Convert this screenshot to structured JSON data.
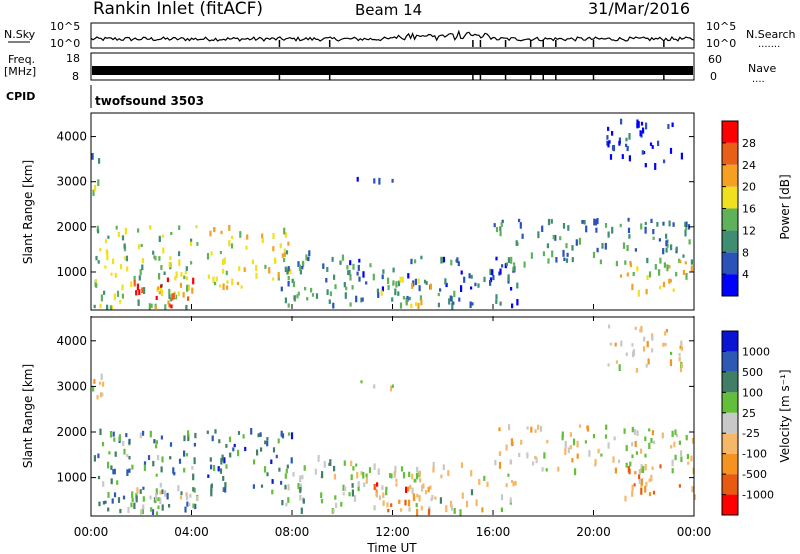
{
  "header": {
    "station": "Rankin Inlet (fitACF)",
    "beam": "Beam 14",
    "date": "31/Mar/2016"
  },
  "nsky_panel": {
    "left_label": "N.Sky",
    "right_label": "N.Search",
    "right_dots": ".......",
    "left_ticks": [
      "10^5",
      "10^0"
    ],
    "right_ticks": [
      "10^5",
      "10^0"
    ]
  },
  "freq_panel": {
    "left_label_top": "Freq.",
    "left_label_bottom": "[MHz]",
    "right_label": "Nave",
    "right_dots": "....",
    "left_ticks": [
      "18",
      "8"
    ],
    "right_ticks": [
      "60",
      "0"
    ]
  },
  "cpid_panel": {
    "label": "CPID",
    "value": "twofsound 3503"
  },
  "x_axis": {
    "title": "Time UT",
    "ticks": [
      "00:00",
      "04:00",
      "08:00",
      "12:00",
      "16:00",
      "20:00",
      "00:00"
    ]
  },
  "colors": {
    "power": [
      "#0000ff",
      "#2a52b8",
      "#3f8d72",
      "#5fb25a",
      "#f0e020",
      "#f5a020",
      "#e86018",
      "#ff0000"
    ],
    "velocity": [
      "#ff0000",
      "#e85a10",
      "#f49320",
      "#f5b868",
      "#c8c8c8",
      "#63be3c",
      "#407e66",
      "#2d59b4",
      "#0a14d2"
    ]
  },
  "chart_data": [
    {
      "type": "heatmap",
      "name": "power",
      "ylabel": "Slant Range [km]",
      "yticks": [
        1000,
        2000,
        3000,
        4000
      ],
      "ylim": [
        180,
        4500
      ],
      "xlim": [
        0,
        24
      ],
      "colorbar": {
        "label": "Power [dB]",
        "ticks": [
          "28",
          "24",
          "20",
          "16",
          "12",
          "8",
          "4"
        ],
        "range": [
          0,
          32
        ]
      },
      "regions": [
        {
          "t0": 0.1,
          "t1": 4.2,
          "r0": 250,
          "r1": 2100,
          "level": 0.45
        },
        {
          "t0": 1.5,
          "t1": 4.1,
          "r0": 250,
          "r1": 900,
          "level": 0.85
        },
        {
          "t0": 4.6,
          "t1": 8.0,
          "r0": 700,
          "r1": 2100,
          "level": 0.55
        },
        {
          "t0": 7.5,
          "t1": 10.5,
          "r0": 300,
          "r1": 1500,
          "level": 0.3
        },
        {
          "t0": 10.0,
          "t1": 17.0,
          "r0": 300,
          "r1": 1400,
          "level": 0.25
        },
        {
          "t0": 11.0,
          "t1": 13.5,
          "r0": 300,
          "r1": 900,
          "level": 0.55
        },
        {
          "t0": 16.0,
          "t1": 24.0,
          "r0": 1200,
          "r1": 2200,
          "level": 0.3
        },
        {
          "t0": 21.0,
          "t1": 24.0,
          "r0": 600,
          "r1": 1300,
          "level": 0.55
        },
        {
          "t0": 10.5,
          "t1": 12.0,
          "r0": 2950,
          "r1": 3150,
          "level": 0.1
        },
        {
          "t0": 20.5,
          "t1": 23.5,
          "r0": 3400,
          "r1": 4400,
          "level": 0.12
        },
        {
          "t0": 0.0,
          "t1": 0.5,
          "r0": 2800,
          "r1": 3800,
          "level": 0.35
        }
      ]
    },
    {
      "type": "heatmap",
      "name": "velocity",
      "ylabel": "Slant Range [km]",
      "yticks": [
        1000,
        2000,
        3000,
        4000
      ],
      "ylim": [
        180,
        4500
      ],
      "xlim": [
        0,
        24
      ],
      "colorbar": {
        "label": "Velocity [m s⁻¹]",
        "ticks": [
          "1000",
          "500",
          "100",
          "25",
          "-25",
          "-100",
          "-500",
          "-1000"
        ],
        "range": [
          -1200,
          1200
        ]
      },
      "regions": [
        {
          "t0": 0.1,
          "t1": 4.2,
          "r0": 250,
          "r1": 2100,
          "level": 0.7
        },
        {
          "t0": 1.5,
          "t1": 4.1,
          "r0": 250,
          "r1": 900,
          "level": 0.52
        },
        {
          "t0": 4.6,
          "t1": 8.0,
          "r0": 700,
          "r1": 2100,
          "level": 0.8
        },
        {
          "t0": 7.5,
          "t1": 10.5,
          "r0": 300,
          "r1": 1500,
          "level": 0.6
        },
        {
          "t0": 10.0,
          "t1": 17.0,
          "r0": 300,
          "r1": 1400,
          "level": 0.5
        },
        {
          "t0": 11.0,
          "t1": 13.5,
          "r0": 300,
          "r1": 900,
          "level": 0.25
        },
        {
          "t0": 16.0,
          "t1": 24.0,
          "r0": 1200,
          "r1": 2200,
          "level": 0.48
        },
        {
          "t0": 21.0,
          "t1": 24.0,
          "r0": 600,
          "r1": 1300,
          "level": 0.28
        },
        {
          "t0": 10.5,
          "t1": 12.0,
          "r0": 2950,
          "r1": 3150,
          "level": 0.5
        },
        {
          "t0": 20.5,
          "t1": 23.5,
          "r0": 3400,
          "r1": 4400,
          "level": 0.45
        },
        {
          "t0": 0.0,
          "t1": 0.5,
          "r0": 2800,
          "r1": 3800,
          "level": 0.5
        }
      ]
    }
  ]
}
